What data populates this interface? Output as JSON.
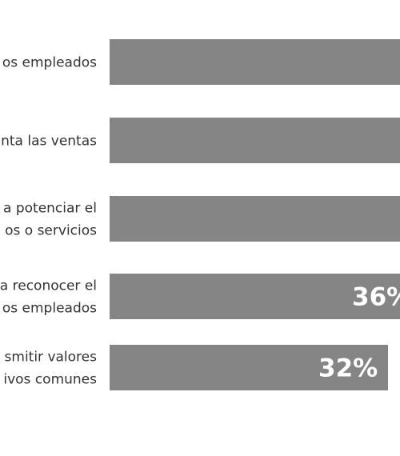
{
  "chart_data": {
    "type": "bar",
    "orientation": "horizontal",
    "categories": [
      [
        "os empleados"
      ],
      [
        "nta las ventas"
      ],
      [
        "a potenciar el",
        "os o servicios"
      ],
      [
        "a reconocer el",
        "os empleados"
      ],
      [
        "smitir valores",
        "ivos comunes"
      ]
    ],
    "values": [
      null,
      null,
      null,
      36,
      32
    ],
    "value_labels": [
      "",
      "",
      "",
      "36%",
      "32%"
    ],
    "colors": {
      "bar": "#858585",
      "category_text": "#333333",
      "value_text": "#ffffff"
    }
  }
}
